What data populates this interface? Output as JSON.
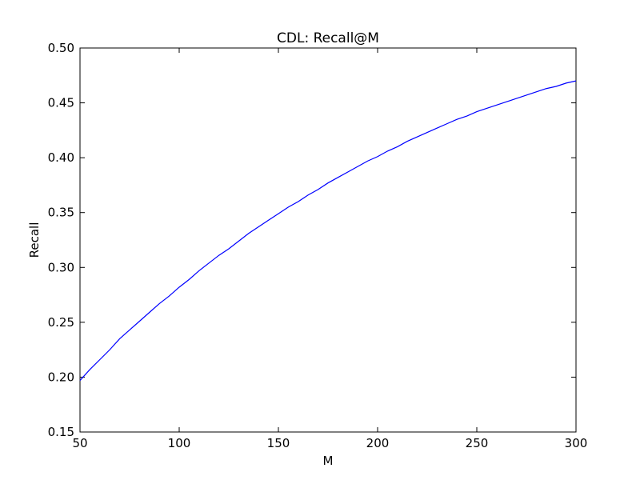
{
  "chart_data": {
    "type": "line",
    "title": "CDL: Recall@M",
    "xlabel": "M",
    "ylabel": "Recall",
    "xlim": [
      50,
      300
    ],
    "ylim": [
      0.15,
      0.5
    ],
    "x_ticks": [
      50,
      100,
      150,
      200,
      250,
      300
    ],
    "y_ticks": [
      0.15,
      0.2,
      0.25,
      0.3,
      0.35,
      0.4,
      0.45,
      0.5
    ],
    "x_tick_labels": [
      "50",
      "100",
      "150",
      "200",
      "250",
      "300"
    ],
    "y_tick_labels": [
      "0.15",
      "0.20",
      "0.25",
      "0.30",
      "0.35",
      "0.40",
      "0.45",
      "0.50"
    ],
    "grid": false,
    "legend": "none",
    "series": [
      {
        "color": "#0000ff",
        "x": [
          50,
          55,
          60,
          65,
          70,
          75,
          80,
          85,
          90,
          95,
          100,
          105,
          110,
          115,
          120,
          125,
          130,
          135,
          140,
          145,
          150,
          155,
          160,
          165,
          170,
          175,
          180,
          185,
          190,
          195,
          200,
          205,
          210,
          215,
          220,
          225,
          230,
          235,
          240,
          245,
          250,
          255,
          260,
          265,
          270,
          275,
          280,
          285,
          290,
          295,
          300
        ],
        "y": [
          0.197,
          0.207,
          0.216,
          0.225,
          0.235,
          0.243,
          0.251,
          0.259,
          0.267,
          0.274,
          0.282,
          0.289,
          0.297,
          0.304,
          0.311,
          0.317,
          0.324,
          0.331,
          0.337,
          0.343,
          0.349,
          0.355,
          0.36,
          0.366,
          0.371,
          0.377,
          0.382,
          0.387,
          0.392,
          0.397,
          0.401,
          0.406,
          0.41,
          0.415,
          0.419,
          0.423,
          0.427,
          0.431,
          0.435,
          0.438,
          0.442,
          0.445,
          0.448,
          0.451,
          0.454,
          0.457,
          0.46,
          0.463,
          0.465,
          0.468,
          0.47
        ]
      }
    ]
  }
}
